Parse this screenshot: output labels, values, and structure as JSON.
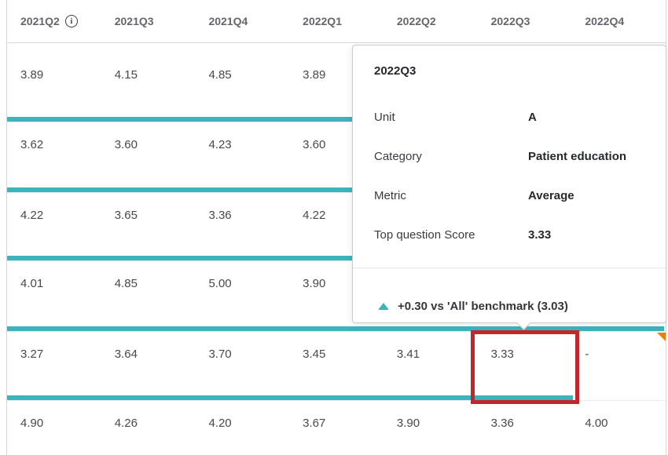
{
  "table": {
    "columns": [
      "2021Q2",
      "2021Q3",
      "2021Q4",
      "2022Q1",
      "2022Q2",
      "2022Q3",
      "2022Q4"
    ],
    "first_column_has_info_icon": true,
    "rows": [
      {
        "values": [
          "3.89",
          "4.15",
          "4.85",
          "3.89",
          "",
          "",
          ""
        ]
      },
      {
        "values": [
          "3.62",
          "3.60",
          "4.23",
          "3.60",
          "",
          "",
          ""
        ]
      },
      {
        "values": [
          "4.22",
          "3.65",
          "3.36",
          "4.22",
          "",
          "",
          ""
        ]
      },
      {
        "values": [
          "4.01",
          "4.85",
          "5.00",
          "3.90",
          "",
          "",
          ""
        ]
      },
      {
        "values": [
          "3.27",
          "3.64",
          "3.70",
          "3.45",
          "3.41",
          "3.33",
          "-"
        ]
      },
      {
        "values": [
          "4.90",
          "4.26",
          "4.20",
          "3.67",
          "3.90",
          "3.36",
          "4.00"
        ]
      }
    ]
  },
  "tooltip": {
    "title": "2022Q3",
    "fields": [
      {
        "label": "Unit",
        "value": "A"
      },
      {
        "label": "Category",
        "value": "Patient education"
      },
      {
        "label": "Metric",
        "value": "Average"
      },
      {
        "label": "Top question Score",
        "value": "3.33"
      }
    ],
    "benchmark": {
      "direction": "up",
      "text": "+0.30 vs 'All' benchmark (3.03)"
    }
  },
  "icons": {
    "info_glyph": "i"
  },
  "annotations": {
    "highlight_box": {
      "target_quarter": "2022Q3",
      "target_value": "3.33",
      "color": "#c0262c"
    },
    "corner_flag": {
      "target_quarter": "2022Q4",
      "color": "#e6820c"
    }
  },
  "colors": {
    "accent_teal": "#3bb4be",
    "highlight_red": "#c0262c",
    "flag_orange": "#e6820c",
    "header_text": "#63676b",
    "cell_text": "#45494d",
    "border_gray": "#d5d7d9"
  }
}
